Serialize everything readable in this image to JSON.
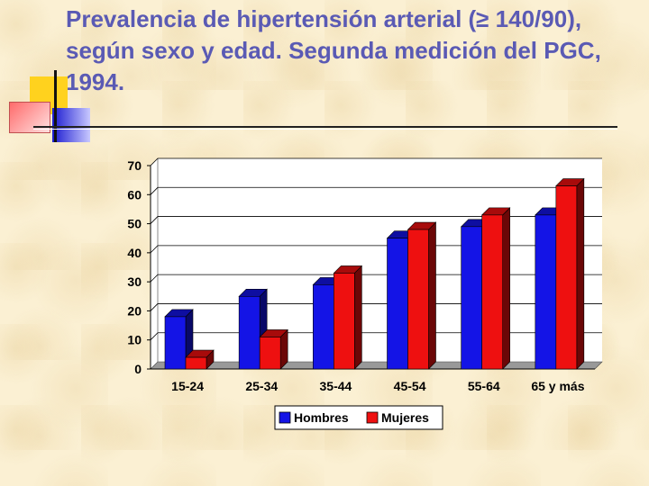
{
  "slide": {
    "title": "Prevalencia de hipertensión arterial (≥ 140/90), según sexo y edad. Segunda medición del PGC, 1994."
  },
  "colors": {
    "title": "#5a5ab4",
    "hombres": "#1414e6",
    "mujeres": "#ee1010",
    "background": "#fbf0d3"
  },
  "chart_data": {
    "type": "bar",
    "categories": [
      "15-24",
      "25-34",
      "35-44",
      "45-54",
      "55-64",
      "65 y más"
    ],
    "series": [
      {
        "name": "Hombres",
        "values": [
          18,
          25,
          29,
          45,
          49,
          53
        ]
      },
      {
        "name": "Mujeres",
        "values": [
          4,
          11,
          33,
          48,
          53,
          63
        ]
      }
    ],
    "ylim": [
      0,
      70
    ],
    "yticks": [
      0,
      10,
      20,
      30,
      40,
      50,
      60,
      70
    ],
    "title": "",
    "xlabel": "",
    "ylabel": "",
    "grid": true,
    "legend_position": "bottom",
    "style": "3d"
  }
}
